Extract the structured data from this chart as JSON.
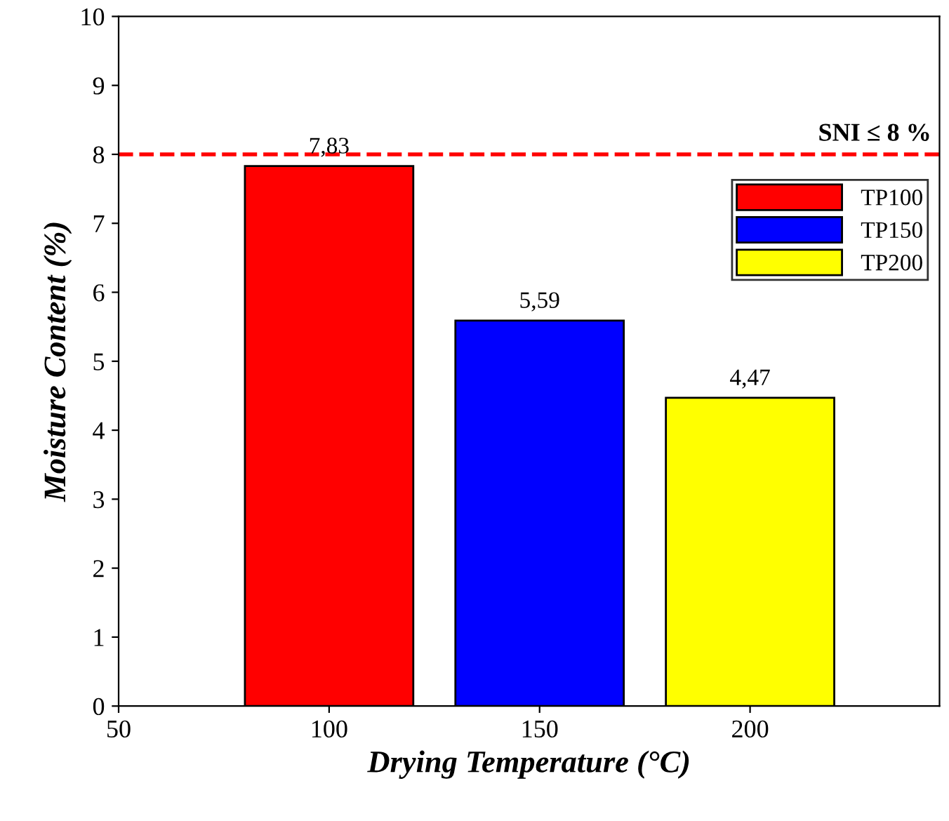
{
  "chart_data": {
    "type": "bar",
    "xlabel": "Drying Temperature (°C)",
    "ylabel": "Moisture Content (%)",
    "series": [
      {
        "name": "TP100",
        "color": "#ff0000",
        "x": [
          100
        ],
        "values": [
          7.83
        ],
        "value_labels": [
          "7,83"
        ]
      },
      {
        "name": "TP150",
        "color": "#0000ff",
        "x": [
          150
        ],
        "values": [
          5.59
        ],
        "value_labels": [
          "5,59"
        ]
      },
      {
        "name": "TP200",
        "color": "#ffff00",
        "x": [
          200
        ],
        "values": [
          4.47
        ],
        "value_labels": [
          "4,47"
        ]
      }
    ],
    "xlim": [
      50,
      245
    ],
    "xticks": [
      50,
      100,
      150,
      200
    ],
    "ylim": [
      0,
      10
    ],
    "yticks": [
      0,
      1,
      2,
      3,
      4,
      5,
      6,
      7,
      8,
      9,
      10
    ],
    "ref_lines": [
      {
        "axis": "y",
        "value": 8,
        "label": "SNI ≤ 8 %",
        "color": "#ff0000",
        "line_style": "dashed"
      }
    ],
    "legend": "top right",
    "grid": false
  }
}
